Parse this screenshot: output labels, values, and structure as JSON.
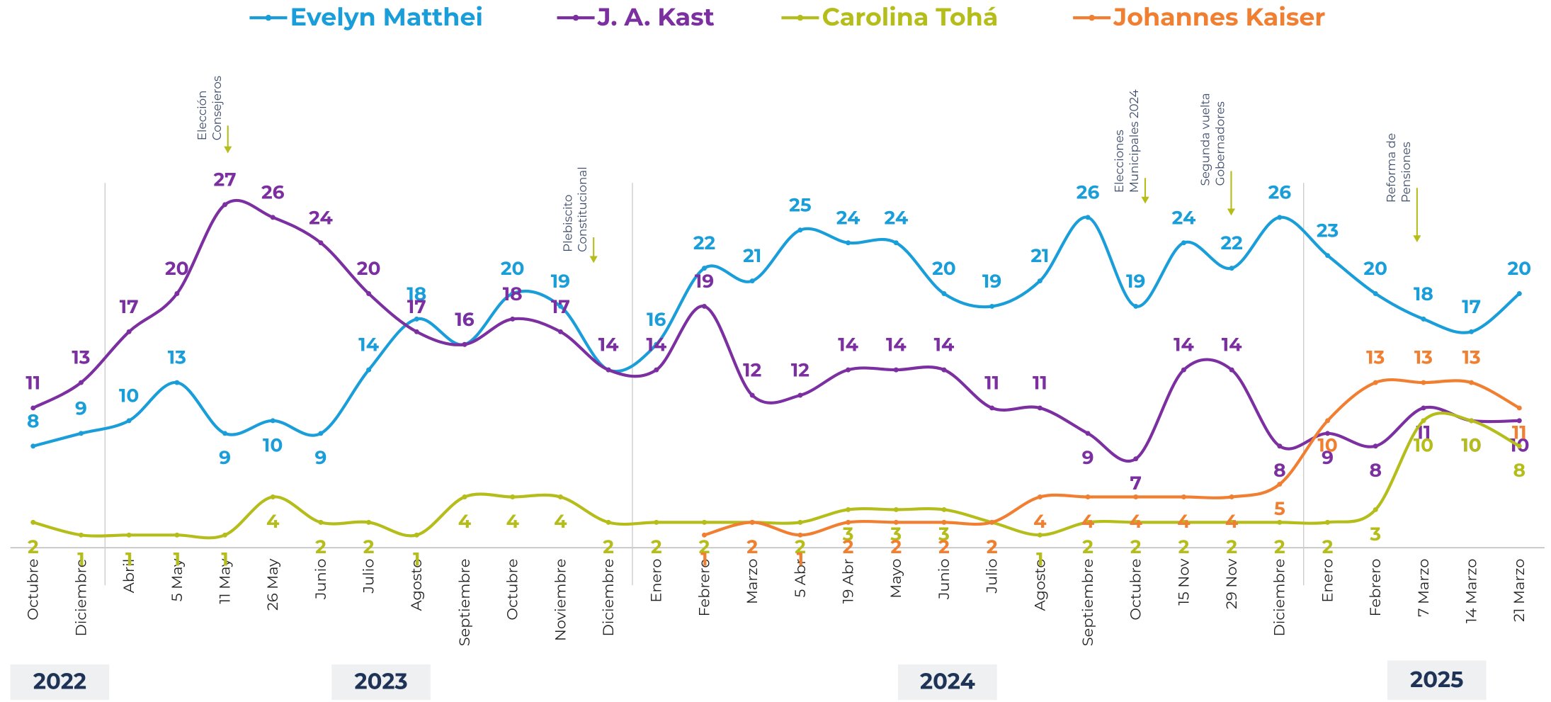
{
  "chart_data": {
    "type": "line",
    "categories": [
      "Octubre",
      "Diciembre",
      "Abril",
      "5 May",
      "11 May",
      "26 May",
      "Junio",
      "Julio",
      "Agosto",
      "Septiembre",
      "Octubre",
      "Noviembre",
      "Diciembre",
      "Enero",
      "Febrero",
      "Marzo",
      "5 Abr",
      "19 Abr",
      "Mayo",
      "Junio",
      "Julio",
      "Agosto",
      "Septiembre",
      "Octubre",
      "15 Nov",
      "29 Nov",
      "Diciembre",
      "Enero",
      "Febrero",
      "7 Marzo",
      "14 Marzo",
      "21 Marzo"
    ],
    "series": [
      {
        "name": "Evelyn Matthei",
        "color": "#1a9ed9",
        "values": [
          8,
          9,
          10,
          13,
          9,
          10,
          9,
          14,
          18,
          16,
          20,
          19,
          14,
          16,
          22,
          21,
          25,
          24,
          24,
          20,
          19,
          21,
          26,
          19,
          24,
          22,
          26,
          23,
          20,
          18,
          17,
          20
        ]
      },
      {
        "name": "J. A. Kast",
        "color": "#7b2fa0",
        "values": [
          11,
          13,
          17,
          20,
          27,
          26,
          24,
          20,
          17,
          16,
          18,
          17,
          14,
          14,
          19,
          12,
          12,
          14,
          14,
          14,
          11,
          11,
          9,
          7,
          14,
          14,
          8,
          9,
          8,
          11,
          10,
          10
        ]
      },
      {
        "name": "Carolina Tohá",
        "color": "#b5bd1a",
        "values": [
          2,
          1,
          1,
          1,
          1,
          4,
          2,
          2,
          1,
          4,
          4,
          4,
          2,
          2,
          2,
          2,
          2,
          3,
          3,
          3,
          2,
          1,
          2,
          2,
          2,
          2,
          2,
          2,
          3,
          10,
          10,
          8
        ]
      },
      {
        "name": "Johannes Kaiser",
        "color": "#f07f32",
        "values": [
          null,
          null,
          null,
          null,
          null,
          null,
          null,
          null,
          null,
          null,
          null,
          null,
          null,
          null,
          1,
          2,
          1,
          2,
          2,
          2,
          2,
          4,
          4,
          4,
          4,
          4,
          5,
          10,
          13,
          13,
          13,
          11
        ]
      }
    ],
    "years": [
      "2022",
      "2023",
      "2024",
      "2025"
    ],
    "annotations": [
      [
        "Elección",
        "Consejeros"
      ],
      [
        "Plebiscito",
        "Constitucional"
      ],
      [
        "Elecciones",
        "Municipales 2024"
      ],
      [
        "Segunda vuelta",
        "Gobernadores"
      ],
      [
        "Reforma de",
        "Pensiones"
      ]
    ],
    "annotation_color": "#b5bd1a"
  }
}
